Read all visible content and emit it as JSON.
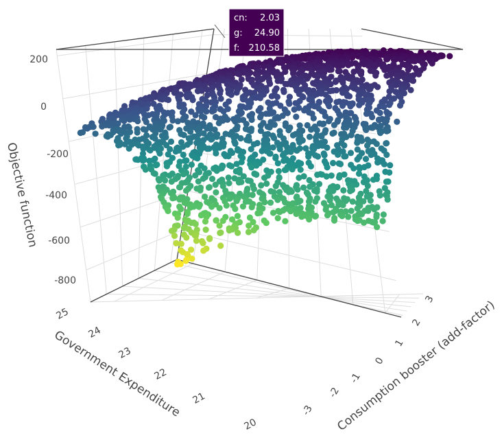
{
  "chart_data": {
    "type": "scatter",
    "plot_kind": "3d-scatter",
    "xlabel": "Consumption booster (add-factor)",
    "ylabel": "Government Expenditure",
    "zlabel": "Objective function",
    "x_ticks": [
      -3,
      -2,
      -1,
      0,
      1,
      2,
      3
    ],
    "y_ticks": [
      20,
      21,
      22,
      23,
      24,
      25
    ],
    "z_ticks": [
      -800,
      -600,
      -400,
      -200,
      0,
      200
    ],
    "xlim": [
      -3.5,
      3.5
    ],
    "ylim": [
      19.6,
      25
    ],
    "zlim": [
      -950,
      230
    ],
    "colorscale": "viridis",
    "colorscale_stops": [
      "#440154",
      "#3b528b",
      "#21918c",
      "#5ec962",
      "#fde725"
    ],
    "marker_color_by": "z",
    "grid": true,
    "approx_point_count": 2000,
    "surface_description": "points follow a downward-opening paraboloid: maximum (~210) near cn≈2, g≈25; minimum (~-930) near cn≈-3, g≈20",
    "sample_points": [
      {
        "cn": 2.03,
        "g": 24.9,
        "f": 210.58
      },
      {
        "cn": 3.4,
        "g": 25.0,
        "f": 20
      },
      {
        "cn": -3.4,
        "g": 25.0,
        "f": 15
      },
      {
        "cn": 3.4,
        "g": 19.7,
        "f": -330
      },
      {
        "cn": 0.0,
        "g": 22.5,
        "f": -150
      },
      {
        "cn": -3.3,
        "g": 19.8,
        "f": -930
      }
    ],
    "hover": {
      "cn_label": "cn:",
      "cn_value": "2.03",
      "g_label": "g:",
      "g_value": "24.90",
      "f_label": "f:",
      "f_value": "210.58"
    }
  }
}
